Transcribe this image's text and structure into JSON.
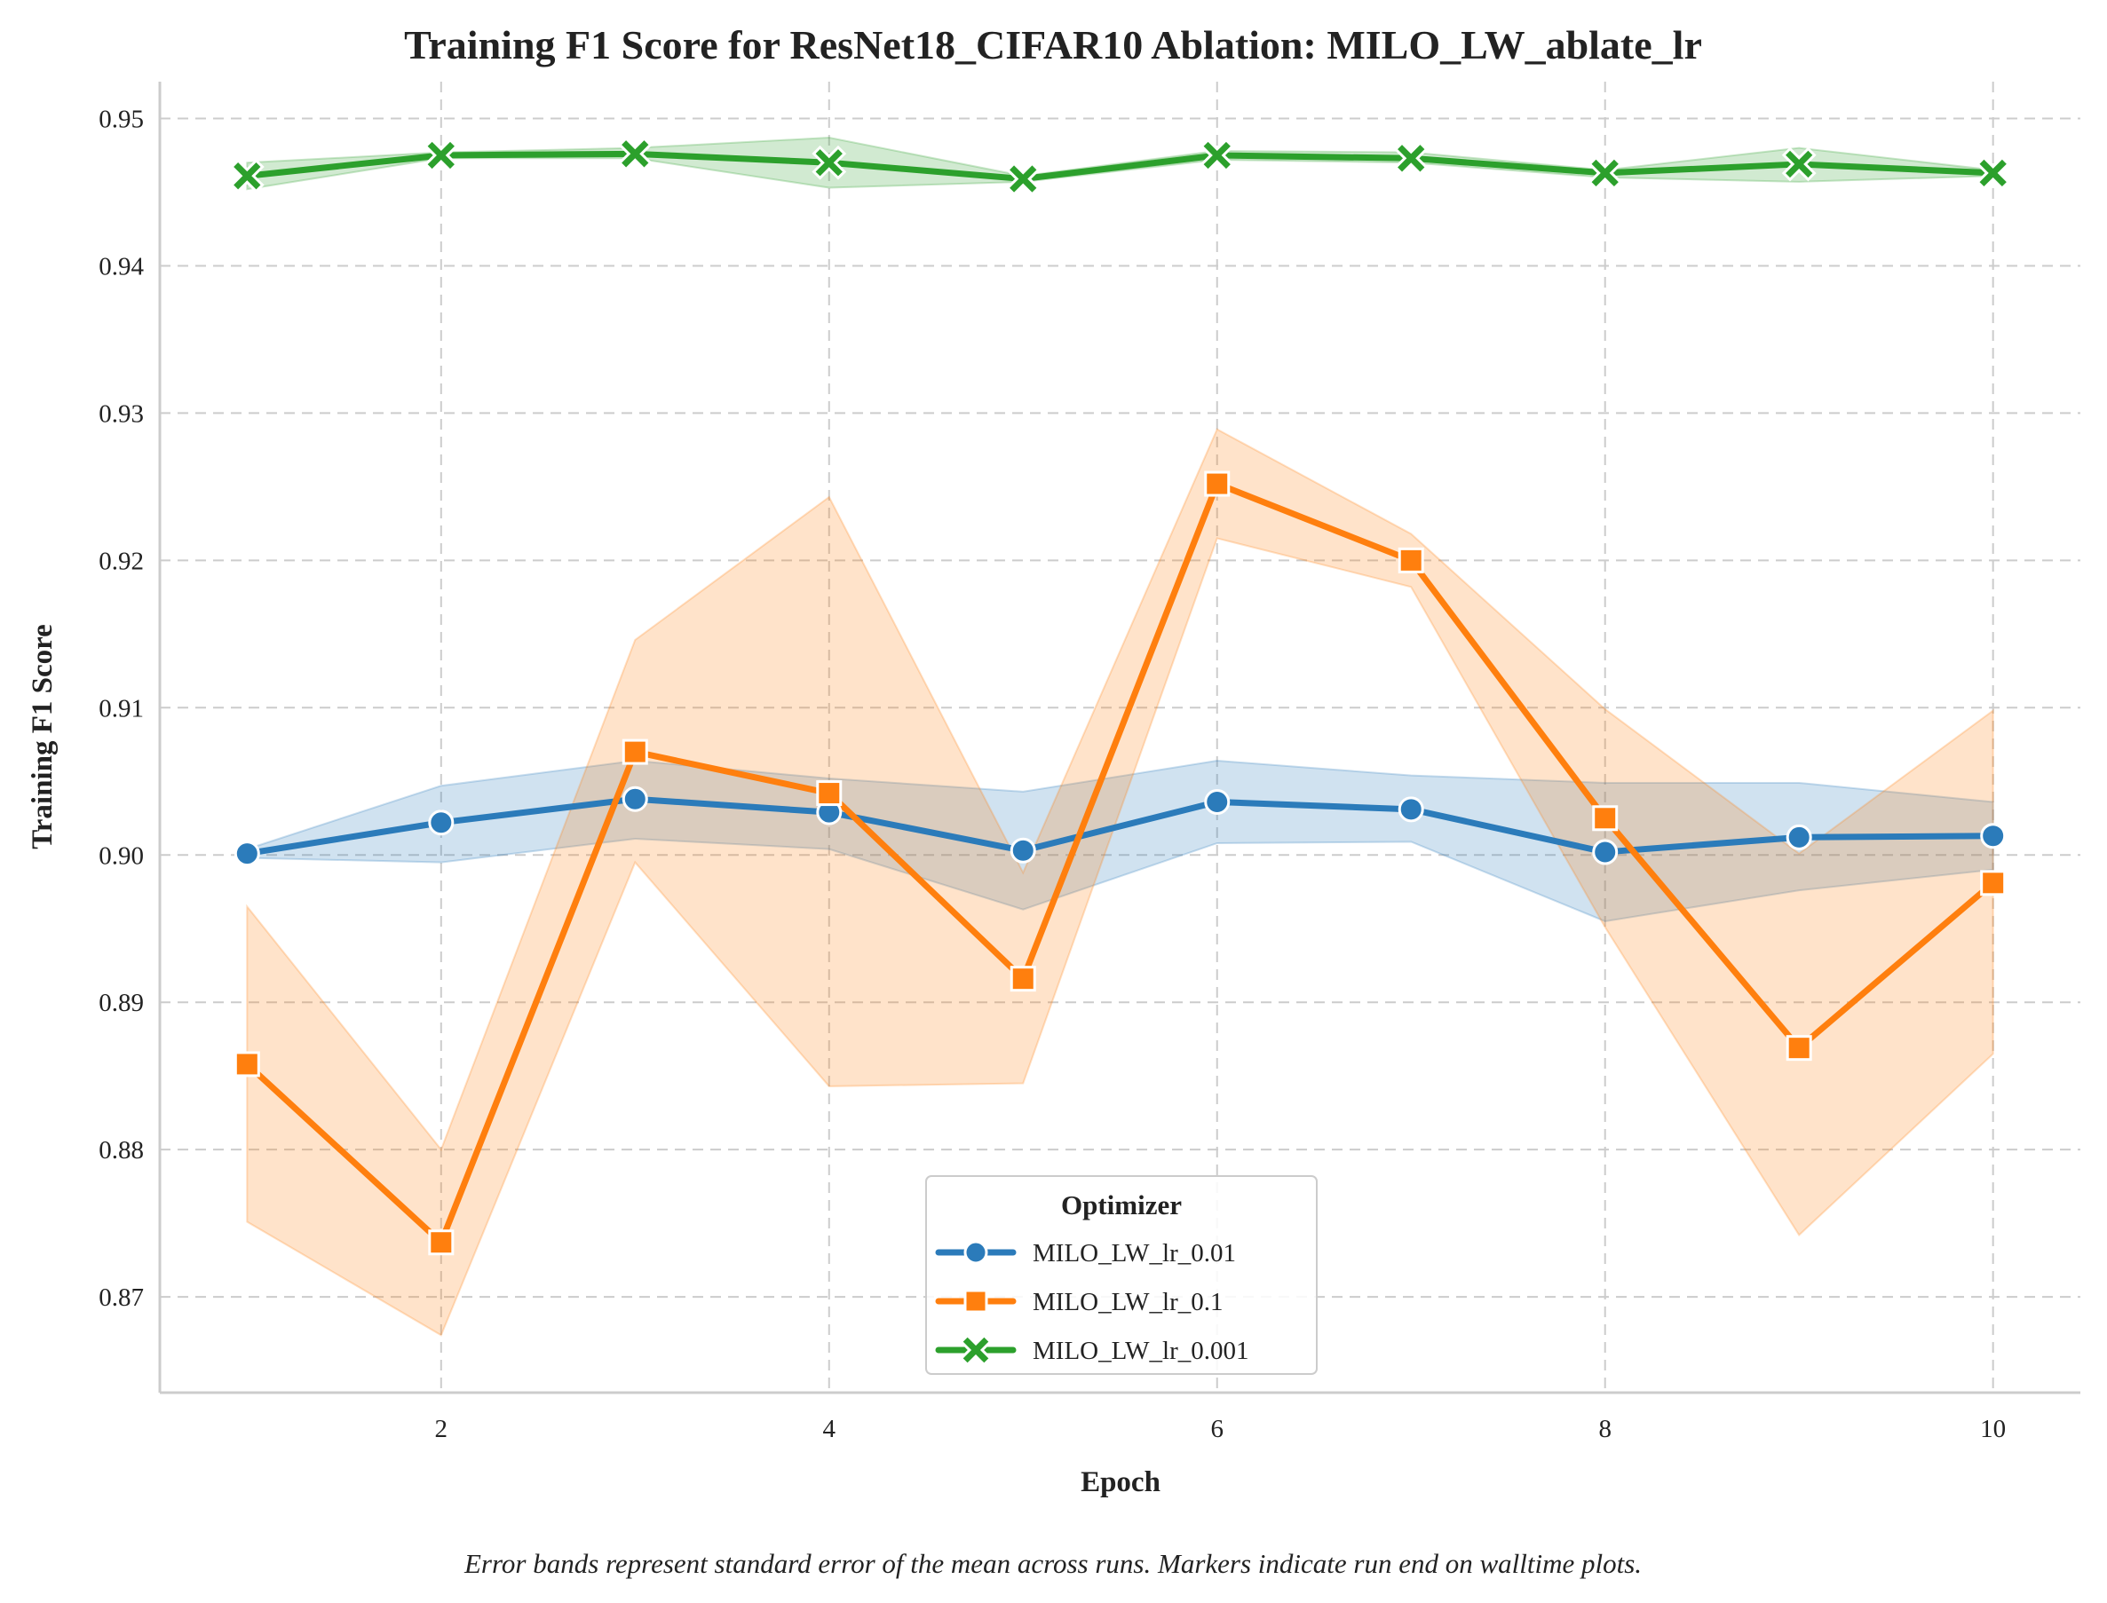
{
  "chart_data": {
    "type": "line",
    "title": "Training F1 Score for ResNet18_CIFAR10 Ablation: MILO_LW_ablate_lr",
    "xlabel": "Epoch",
    "ylabel": "Training F1 Score",
    "caption": "Error bands represent standard error of the mean across runs. Markers indicate run end on walltime plots.",
    "x": [
      1,
      2,
      3,
      4,
      5,
      6,
      7,
      8,
      9,
      10
    ],
    "xlim": [
      0.55,
      10.45
    ],
    "ylim": [
      0.8635,
      0.9525
    ],
    "xticks": [
      2,
      4,
      6,
      8,
      10
    ],
    "xtick_labels": [
      "2",
      "4",
      "6",
      "8",
      "10"
    ],
    "yticks": [
      0.87,
      0.88,
      0.89,
      0.9,
      0.91,
      0.92,
      0.93,
      0.94,
      0.95
    ],
    "ytick_labels": [
      "0.87",
      "0.88",
      "0.89",
      "0.90",
      "0.91",
      "0.92",
      "0.93",
      "0.94",
      "0.95"
    ],
    "grid": true,
    "legend": {
      "title": "Optimizer",
      "position": "lower-center"
    },
    "series": [
      {
        "name": "MILO_LW_lr_0.01",
        "color": "#2b7bba",
        "marker": "circle",
        "values": [
          0.9001,
          0.9022,
          0.9038,
          0.9029,
          0.9003,
          0.9036,
          0.9031,
          0.9002,
          0.9012,
          0.9013
        ],
        "band_lower": [
          0.8998,
          0.8995,
          0.9011,
          0.9004,
          0.8963,
          0.9008,
          0.9009,
          0.8955,
          0.8976,
          0.899
        ],
        "band_upper": [
          0.9004,
          0.9047,
          0.9064,
          0.9052,
          0.9043,
          0.9064,
          0.9054,
          0.9049,
          0.9049,
          0.9036
        ]
      },
      {
        "name": "MILO_LW_lr_0.1",
        "color": "#ff7f0e",
        "marker": "square",
        "values": [
          0.8858,
          0.8737,
          0.907,
          0.9042,
          0.8916,
          0.9252,
          0.92,
          0.9025,
          0.8869,
          0.8981
        ],
        "band_lower": [
          0.8751,
          0.8674,
          0.8995,
          0.8843,
          0.8845,
          0.9215,
          0.9182,
          0.8951,
          0.8742,
          0.8865
        ],
        "band_upper": [
          0.8965,
          0.88,
          0.9146,
          0.9243,
          0.8988,
          0.9289,
          0.9218,
          0.9099,
          0.9001,
          0.9098
        ]
      },
      {
        "name": "MILO_LW_lr_0.001",
        "color": "#2ca02c",
        "marker": "x",
        "values": [
          0.9461,
          0.9475,
          0.9476,
          0.947,
          0.9459,
          0.9475,
          0.9473,
          0.9463,
          0.9469,
          0.9463
        ],
        "band_lower": [
          0.9452,
          0.9473,
          0.9473,
          0.9453,
          0.9457,
          0.9472,
          0.947,
          0.946,
          0.9457,
          0.9461
        ],
        "band_upper": [
          0.947,
          0.9477,
          0.948,
          0.9487,
          0.9461,
          0.9478,
          0.9477,
          0.9465,
          0.948,
          0.9465
        ]
      }
    ]
  }
}
